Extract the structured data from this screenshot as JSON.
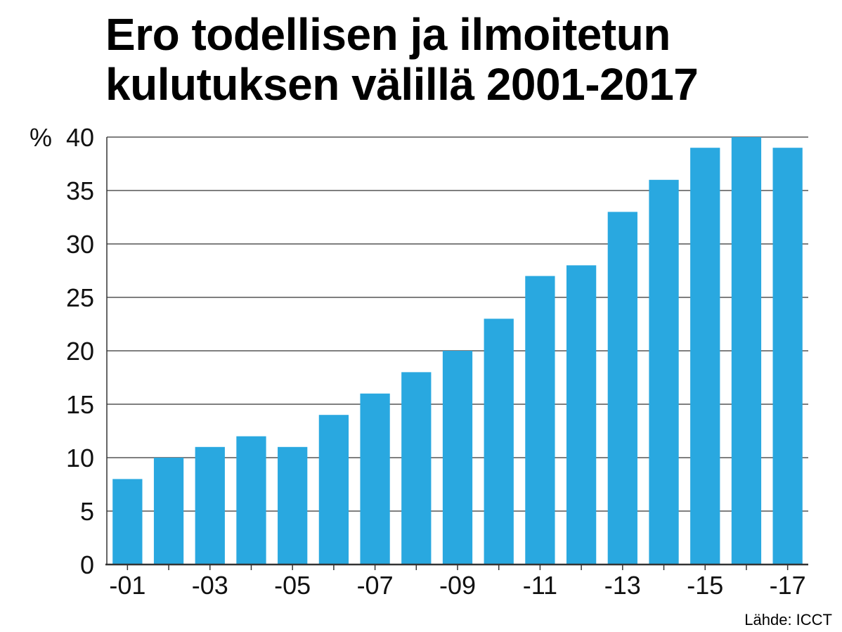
{
  "chart_data": {
    "type": "bar",
    "title_lines": [
      "Ero todellisen ja ilmoitetun",
      "kulutuksen välillä 2001-2017"
    ],
    "ylabel": "%",
    "xlabel": "",
    "ylim": [
      0,
      40
    ],
    "yticks": [
      0,
      5,
      10,
      15,
      20,
      25,
      30,
      35,
      40
    ],
    "categories": [
      "2001",
      "2002",
      "2003",
      "2004",
      "2005",
      "2006",
      "2007",
      "2008",
      "2009",
      "2010",
      "2011",
      "2012",
      "2013",
      "2014",
      "2015",
      "2016",
      "2017"
    ],
    "values": [
      8,
      10,
      11,
      12,
      11,
      14,
      16,
      18,
      20,
      23,
      27,
      28,
      33,
      36,
      39,
      40,
      39
    ],
    "xtick_labels": [
      "-01",
      "",
      "-03",
      "",
      "-05",
      "",
      "-07",
      "",
      "-09",
      "",
      "-11",
      "",
      "-13",
      "",
      "-15",
      "",
      "-17"
    ],
    "bar_color": "#29a8e0",
    "grid": true,
    "legend": "none"
  },
  "source": "Lähde: ICCT"
}
